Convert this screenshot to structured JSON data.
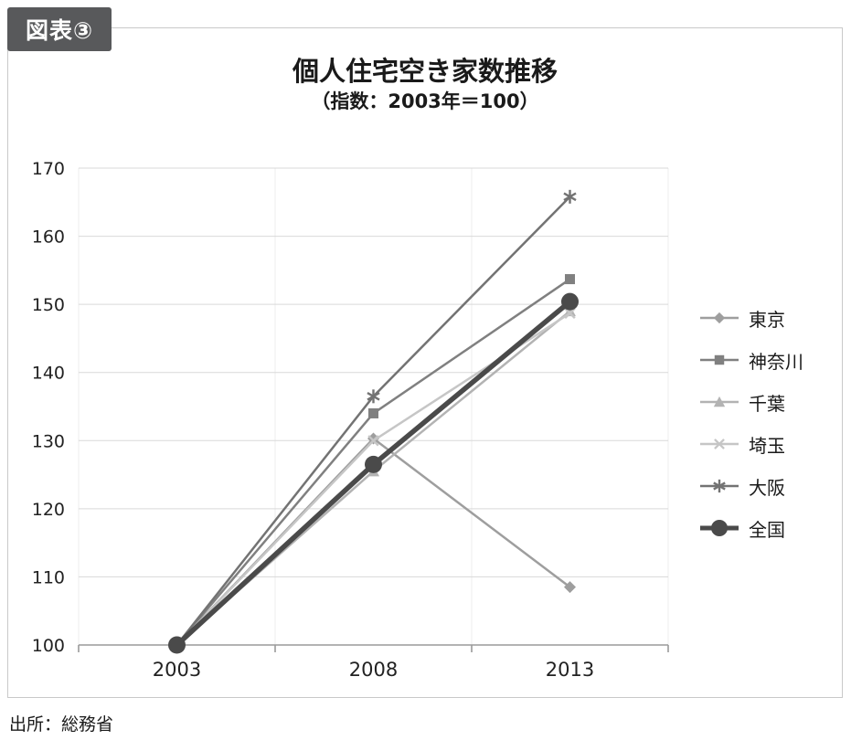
{
  "badge": {
    "label": "図表③"
  },
  "title": "個人住宅空き家数推移",
  "subtitle": "（指数：2003年＝100）",
  "source": "出所：総務省",
  "chart_data": {
    "type": "line",
    "x_labels": [
      "2003",
      "2008",
      "2013"
    ],
    "ylim": [
      100,
      170
    ],
    "y_ticks": [
      100,
      110,
      120,
      130,
      140,
      150,
      160,
      170
    ],
    "grid": true,
    "legend_position": "right",
    "series": [
      {
        "name": "東京",
        "marker": "diamond",
        "color": "#9e9e9e",
        "width": 2.5,
        "values": [
          100,
          130.3,
          108.5
        ]
      },
      {
        "name": "神奈川",
        "marker": "square",
        "color": "#808080",
        "width": 2.5,
        "values": [
          100,
          134.0,
          153.7
        ]
      },
      {
        "name": "千葉",
        "marker": "triangle",
        "color": "#b3b3b3",
        "width": 2.5,
        "values": [
          100,
          125.5,
          149.0
        ]
      },
      {
        "name": "埼玉",
        "marker": "x",
        "color": "#c6c6c6",
        "width": 2.5,
        "values": [
          100,
          130.0,
          148.7
        ]
      },
      {
        "name": "大阪",
        "marker": "asterisk",
        "color": "#737373",
        "width": 2.5,
        "values": [
          100,
          136.5,
          165.8
        ]
      },
      {
        "name": "全国",
        "marker": "circle",
        "color": "#4a4a4a",
        "width": 5.5,
        "values": [
          100,
          126.5,
          150.4
        ]
      }
    ]
  }
}
